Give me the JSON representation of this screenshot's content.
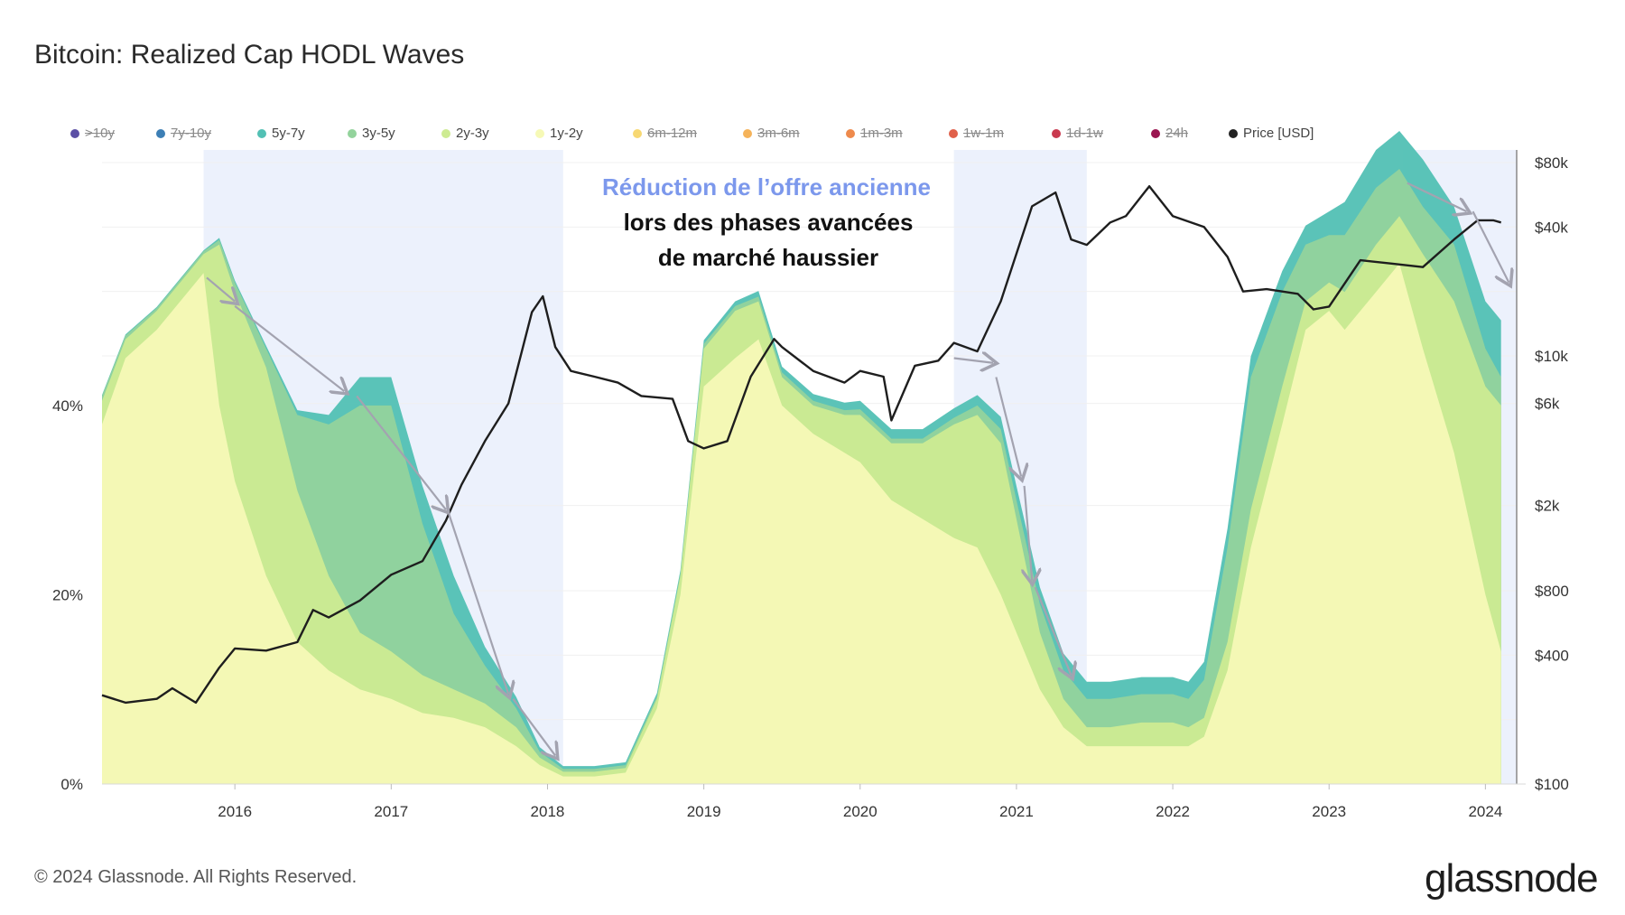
{
  "header": {
    "title": "Bitcoin: Realized Cap HODL Waves"
  },
  "footer": {
    "copyright": "© 2024 Glassnode. All Rights Reserved.",
    "logo": "glassnode"
  },
  "legend": [
    {
      "label": ">10y",
      "color": "#5b4fa5",
      "active": false
    },
    {
      "label": "7y-10y",
      "color": "#3d7fb5",
      "active": false
    },
    {
      "label": "5y-7y",
      "color": "#52c0b4",
      "active": true
    },
    {
      "label": "3y-5y",
      "color": "#93d39c",
      "active": true
    },
    {
      "label": "2y-3y",
      "color": "#cdeb92",
      "active": true
    },
    {
      "label": "1y-2y",
      "color": "#f6f9b6",
      "active": true
    },
    {
      "label": "6m-12m",
      "color": "#f7d873",
      "active": false
    },
    {
      "label": "3m-6m",
      "color": "#f5b35a",
      "active": false
    },
    {
      "label": "1m-3m",
      "color": "#ee8a4c",
      "active": false
    },
    {
      "label": "1w-1m",
      "color": "#e0604a",
      "active": false
    },
    {
      "label": "1d-1w",
      "color": "#c93a4f",
      "active": false
    },
    {
      "label": "24h",
      "color": "#9a1550",
      "active": false
    },
    {
      "label": "Price [USD]",
      "color": "#222222",
      "active": true
    }
  ],
  "annotation": {
    "line1": "Réduction de l’offre ancienne",
    "line2": "lors des phases avancées",
    "line3": "de marché haussier"
  },
  "chart_data": {
    "type": "area",
    "title": "Bitcoin: Realized Cap HODL Waves",
    "stacked": true,
    "x_range": [
      2015.15,
      2024.2
    ],
    "x_ticks": [
      "2016",
      "2017",
      "2018",
      "2019",
      "2020",
      "2021",
      "2022",
      "2023",
      "2024"
    ],
    "y_left": {
      "ticks": [
        "0%",
        "20%",
        "40%"
      ],
      "range": [
        0,
        67
      ],
      "unit": "%"
    },
    "y_right": {
      "ticks": [
        "$100",
        "$400",
        "$800",
        "$2k",
        "$6k",
        "$10k",
        "$40k",
        "$80k"
      ],
      "scale": "log",
      "range": [
        100,
        80000
      ]
    },
    "highlight_periods": [
      [
        2015.8,
        2018.1
      ],
      [
        2020.6,
        2021.45
      ],
      [
        2023.47,
        2024.2
      ]
    ],
    "x": [
      2015.15,
      2015.3,
      2015.5,
      2015.7,
      2015.8,
      2015.9,
      2016.0,
      2016.2,
      2016.4,
      2016.6,
      2016.8,
      2017.0,
      2017.2,
      2017.4,
      2017.6,
      2017.8,
      2017.95,
      2018.1,
      2018.3,
      2018.5,
      2018.7,
      2018.85,
      2019.0,
      2019.2,
      2019.35,
      2019.5,
      2019.7,
      2019.9,
      2020.0,
      2020.2,
      2020.4,
      2020.6,
      2020.75,
      2020.9,
      2021.0,
      2021.15,
      2021.3,
      2021.45,
      2021.6,
      2021.8,
      2022.0,
      2022.1,
      2022.2,
      2022.35,
      2022.5,
      2022.7,
      2022.85,
      2023.0,
      2023.1,
      2023.3,
      2023.45,
      2023.6,
      2023.8,
      2024.0,
      2024.1
    ],
    "series": [
      {
        "name": "1y-2y",
        "values": [
          38,
          45,
          48,
          52,
          54,
          40,
          32,
          22,
          15,
          12,
          10,
          9,
          7.5,
          7,
          6,
          4,
          2,
          0.8,
          0.8,
          1.2,
          8,
          20,
          42,
          45,
          47,
          40,
          37,
          35,
          34,
          30,
          28,
          26,
          25,
          20,
          16,
          10,
          6,
          4,
          4,
          4,
          4,
          4,
          5,
          12,
          25,
          38,
          48,
          50,
          48,
          52,
          55,
          46,
          35,
          20,
          14
        ]
      },
      {
        "name": "2y-3y",
        "values": [
          2.5,
          2,
          2,
          2,
          2,
          17,
          20,
          22,
          16,
          10,
          6,
          5,
          4,
          3,
          2.5,
          2,
          0.8,
          0.5,
          0.5,
          0.5,
          1,
          2,
          4,
          5,
          4,
          3,
          3,
          4,
          5,
          6,
          8,
          12,
          14,
          16,
          12,
          6,
          3,
          2,
          2,
          2.5,
          2.5,
          2,
          2,
          3,
          4,
          4,
          3,
          3,
          4,
          5,
          5,
          10,
          16,
          22,
          26
        ]
      },
      {
        "name": "3y-5y",
        "values": [
          0.5,
          0.4,
          0.3,
          0.3,
          0.3,
          0.5,
          1,
          2,
          8,
          16,
          24,
          26,
          16,
          8,
          4,
          2,
          0.6,
          0.3,
          0.3,
          0.3,
          0.3,
          0.3,
          0.5,
          0.5,
          0.5,
          0.5,
          0.5,
          0.5,
          0.6,
          0.5,
          0.5,
          0.7,
          1,
          1.5,
          2,
          3,
          3,
          3,
          3,
          3,
          3,
          3,
          4,
          10,
          14,
          10,
          6,
          5,
          6,
          6,
          5,
          5,
          6,
          4,
          3
        ]
      },
      {
        "name": "5y-7y",
        "values": [
          0.1,
          0.1,
          0.1,
          0.1,
          0.1,
          0.2,
          0.2,
          0.3,
          0.5,
          1,
          3,
          3,
          4,
          4,
          2,
          1.2,
          0.5,
          0.3,
          0.3,
          0.3,
          0.3,
          0.3,
          0.4,
          0.5,
          0.6,
          0.6,
          0.7,
          0.8,
          0.9,
          1,
          1,
          1,
          1.1,
          1.3,
          1.5,
          1.8,
          1.8,
          1.8,
          1.8,
          1.8,
          1.8,
          1.8,
          1.9,
          2,
          2.2,
          2.2,
          2,
          2.5,
          3.5,
          4,
          4,
          5,
          4,
          5,
          6
        ]
      }
    ],
    "price": {
      "x": [
        2015.15,
        2015.3,
        2015.5,
        2015.6,
        2015.75,
        2015.9,
        2016.0,
        2016.2,
        2016.4,
        2016.5,
        2016.6,
        2016.8,
        2017.0,
        2017.2,
        2017.35,
        2017.45,
        2017.6,
        2017.75,
        2017.9,
        2017.97,
        2018.05,
        2018.15,
        2018.3,
        2018.45,
        2018.6,
        2018.8,
        2018.9,
        2019.0,
        2019.15,
        2019.3,
        2019.45,
        2019.5,
        2019.7,
        2019.9,
        2020.0,
        2020.15,
        2020.2,
        2020.35,
        2020.5,
        2020.6,
        2020.75,
        2020.9,
        2021.0,
        2021.1,
        2021.25,
        2021.35,
        2021.45,
        2021.6,
        2021.7,
        2021.85,
        2022.0,
        2022.2,
        2022.35,
        2022.45,
        2022.6,
        2022.8,
        2022.9,
        2023.0,
        2023.2,
        2023.4,
        2023.6,
        2023.8,
        2023.95,
        2024.05,
        2024.1
      ],
      "values": [
        260,
        240,
        250,
        280,
        240,
        350,
        430,
        420,
        460,
        650,
        600,
        720,
        950,
        1100,
        1700,
        2500,
        4000,
        6000,
        16000,
        19000,
        11000,
        8500,
        8000,
        7500,
        6500,
        6300,
        4000,
        3700,
        4000,
        8000,
        12000,
        11000,
        8500,
        7500,
        8500,
        8000,
        5000,
        9000,
        9500,
        11500,
        10500,
        18000,
        30000,
        50000,
        58000,
        35000,
        33000,
        42000,
        45000,
        62000,
        45000,
        40000,
        29000,
        20000,
        20500,
        19500,
        16500,
        17000,
        28000,
        27000,
        26000,
        35000,
        43000,
        43000,
        42000
      ]
    }
  }
}
